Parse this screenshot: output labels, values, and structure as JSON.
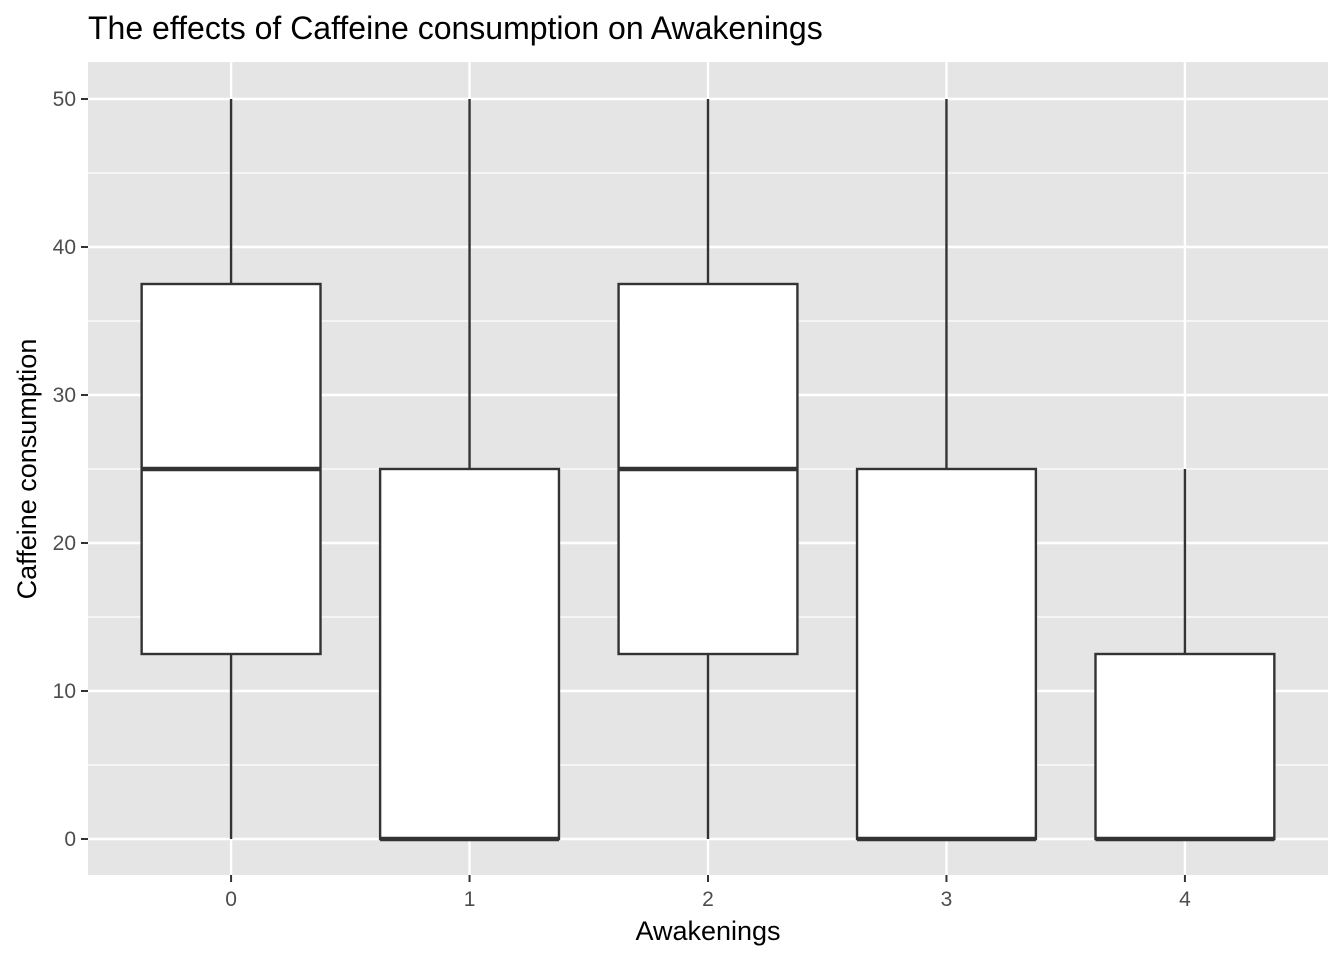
{
  "chart_data": {
    "type": "boxplot",
    "title": "The effects of Caffeine consumption on Awakenings",
    "xlabel": "Awakenings",
    "ylabel": "Caffeine consumption",
    "categories": [
      "0",
      "1",
      "2",
      "3",
      "4"
    ],
    "boxes": [
      {
        "category": "0",
        "min": 0,
        "q1": 12.5,
        "median": 25,
        "q3": 37.5,
        "max": 50
      },
      {
        "category": "1",
        "min": 0,
        "q1": 0,
        "median": 0,
        "q3": 25,
        "max": 50
      },
      {
        "category": "2",
        "min": 0,
        "q1": 12.5,
        "median": 25,
        "q3": 37.5,
        "max": 50
      },
      {
        "category": "3",
        "min": 0,
        "q1": 0,
        "median": 0,
        "q3": 25,
        "max": 50
      },
      {
        "category": "4",
        "min": 0,
        "q1": 0,
        "median": 0,
        "q3": 12.5,
        "max": 25
      }
    ],
    "yticks": [
      0,
      10,
      20,
      30,
      40,
      50
    ],
    "ylim": [
      -2.5,
      52.5
    ],
    "grid": true,
    "legend": "none",
    "colors": {
      "panel_background": "#e5e5e5",
      "grid_line": "#ffffff",
      "box_fill": "#ffffff",
      "box_stroke": "#333333",
      "tick_label": "#4d4d4d",
      "tick_mark": "#333333",
      "text": "#000000"
    }
  }
}
